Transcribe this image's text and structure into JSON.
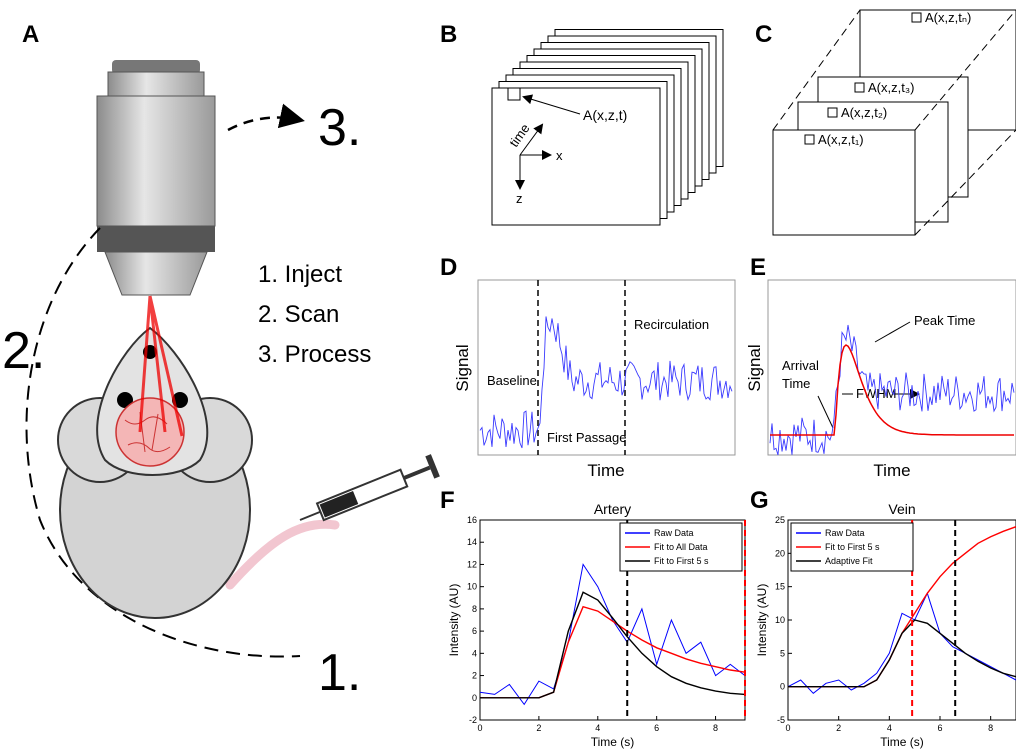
{
  "panel_a": {
    "label": "A",
    "step_labels": [
      "3.",
      "2.",
      "1."
    ],
    "steps": [
      "1. Inject",
      "2. Scan",
      "3. Process"
    ]
  },
  "panel_b": {
    "label": "B",
    "pixel_label": "A(x,z,t)",
    "axis_time": "time",
    "axis_x": "x",
    "axis_z": "z"
  },
  "panel_c": {
    "label": "C",
    "frame_labels": [
      "A(x,z,tₙ)",
      "A(x,z,t₃)",
      "A(x,z,t₂)",
      "A(x,z,t₁)"
    ]
  },
  "panel_d": {
    "label": "D",
    "ylabel": "Signal",
    "xlabel": "Time",
    "annotations": [
      "Baseline",
      "First Passage",
      "Recirculation"
    ]
  },
  "panel_e": {
    "label": "E",
    "ylabel": "Signal",
    "xlabel": "Time",
    "annotations": [
      "Arrival",
      "Time",
      "Peak Time",
      "FWHM"
    ]
  },
  "panel_f": {
    "label": "F",
    "chart": {
      "type": "line",
      "title": "Artery",
      "xlabel": "Time (s)",
      "ylabel": "Intensity (AU)",
      "x": [
        0,
        0.5,
        1,
        1.5,
        2,
        2.5,
        3,
        3.5,
        4,
        4.5,
        5,
        5.5,
        6,
        6.5,
        7,
        7.5,
        8,
        8.5,
        9
      ],
      "series": [
        {
          "name": "Raw Data",
          "color": "#0000ff",
          "values": [
            0.5,
            0.3,
            1.2,
            -0.6,
            1.5,
            0.8,
            5,
            12,
            10,
            7,
            5,
            8,
            3,
            7,
            4,
            5,
            2,
            3,
            2
          ]
        },
        {
          "name": "Fit to All Data",
          "color": "#ff0000",
          "values": [
            0,
            0,
            0,
            0,
            0,
            0.5,
            5,
            8.2,
            7.8,
            6.9,
            6,
            5.2,
            4.5,
            4,
            3.5,
            3.1,
            2.8,
            2.5,
            2.3
          ]
        },
        {
          "name": "Fit to First 5 s",
          "color": "#000000",
          "values": [
            0,
            0,
            0,
            0,
            0,
            0.5,
            6,
            9.5,
            8.8,
            7.2,
            5.5,
            4,
            2.8,
            1.9,
            1.3,
            0.9,
            0.6,
            0.4,
            0.3
          ]
        }
      ],
      "vlines": [
        {
          "x": 5,
          "color": "#000000"
        },
        {
          "x": 9,
          "color": "#ff0000"
        }
      ],
      "xlim": [
        0,
        9
      ],
      "xticks": [
        0,
        2,
        4,
        6,
        8
      ],
      "ylim": [
        -2,
        16
      ],
      "yticks": [
        -2,
        0,
        2,
        4,
        6,
        8,
        10,
        12,
        14,
        16
      ],
      "legend": "upper right"
    }
  },
  "panel_g": {
    "label": "G",
    "chart": {
      "type": "line",
      "title": "Vein",
      "xlabel": "Time (s)",
      "ylabel": "Intensity (AU)",
      "x": [
        0,
        0.5,
        1,
        1.5,
        2,
        2.5,
        3,
        3.5,
        4,
        4.5,
        5,
        5.5,
        6,
        6.5,
        7,
        7.5,
        8,
        8.5,
        9
      ],
      "series": [
        {
          "name": "Raw Data",
          "color": "#0000ff",
          "values": [
            0,
            1,
            -1,
            0.5,
            1,
            -0.5,
            0.5,
            2,
            5,
            11,
            10,
            14,
            8,
            6,
            5,
            4,
            3,
            2,
            1
          ]
        },
        {
          "name": "Fit to First 5 s",
          "color": "#ff0000",
          "values": [
            0,
            0,
            0,
            0,
            0,
            0,
            0,
            1,
            4,
            8,
            11,
            14,
            16.5,
            18.5,
            20,
            21.5,
            22.5,
            23.3,
            24
          ]
        },
        {
          "name": "Adaptive Fit",
          "color": "#000000",
          "values": [
            0,
            0,
            0,
            0,
            0,
            0,
            0,
            1,
            4,
            8,
            10,
            9.5,
            8,
            6.5,
            5,
            3.8,
            2.8,
            2,
            1.5
          ]
        }
      ],
      "vlines": [
        {
          "x": 4.9,
          "color": "#ff0000"
        },
        {
          "x": 6.6,
          "color": "#000000"
        }
      ],
      "xlim": [
        0,
        9
      ],
      "xticks": [
        0,
        2,
        4,
        6,
        8
      ],
      "ylim": [
        -5,
        25
      ],
      "yticks": [
        -5,
        0,
        5,
        10,
        15,
        20,
        25
      ],
      "legend": "upper left"
    }
  }
}
